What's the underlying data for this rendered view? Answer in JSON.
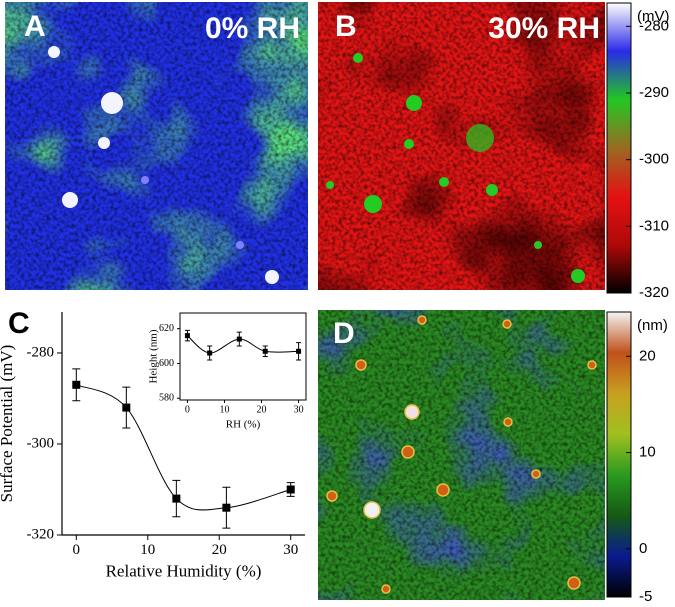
{
  "panels": {
    "a": {
      "letter": "A",
      "label": "0% RH"
    },
    "b": {
      "letter": "B",
      "label": "30% RH"
    },
    "c": {
      "letter": "C"
    },
    "d": {
      "letter": "D"
    }
  },
  "colorbars": [
    {
      "unit": "(mV)",
      "lim": [
        -320,
        -276.5
      ],
      "ticks": [
        -280,
        -290,
        -300,
        -310,
        -320
      ],
      "colors": [
        "#ffffff",
        "#2a2ae8",
        "#22c822",
        "#9a6a22",
        "#e41212",
        "#b00808",
        "#000000"
      ]
    },
    {
      "unit": "(nm)",
      "lim": [
        -5,
        24.6
      ],
      "ticks": [
        20,
        10,
        0,
        -5
      ],
      "colors": [
        "#f4f4f4",
        "#c0501a",
        "#c8a020",
        "#a0c020",
        "#2a9a20",
        "#145a14",
        "#0a1a90",
        "#000000"
      ]
    }
  ],
  "chart_data": [
    {
      "type": "scatter",
      "x_label": "Relative Humidity (%)",
      "y_label": "Surface Potential (mV)",
      "x": [
        0,
        7,
        14,
        21,
        30
      ],
      "values": [
        -287,
        -292,
        -312,
        -314,
        -310
      ],
      "errors": [
        3.5,
        4.5,
        4,
        4.5,
        1.5
      ],
      "color": "#000000",
      "fit_line": true,
      "xlim": [
        -2,
        32
      ],
      "ylim": [
        -320,
        -271
      ],
      "xticks": [
        0,
        10,
        20,
        30
      ],
      "yticks": [
        -280,
        -300,
        -320
      ]
    },
    {
      "type": "scatter",
      "x_label": "RH (%)",
      "y_label": "Height (nm)",
      "x": [
        0,
        6,
        14,
        21,
        30
      ],
      "values": [
        616,
        606,
        614,
        607,
        607
      ],
      "errors": [
        3,
        4,
        4,
        3,
        5
      ],
      "color": "#000000",
      "fit_line": true,
      "xlim": [
        -2,
        32
      ],
      "ylim": [
        579,
        629
      ],
      "xticks": [
        0,
        10,
        20,
        30
      ],
      "yticks": [
        580,
        600,
        620
      ]
    }
  ]
}
